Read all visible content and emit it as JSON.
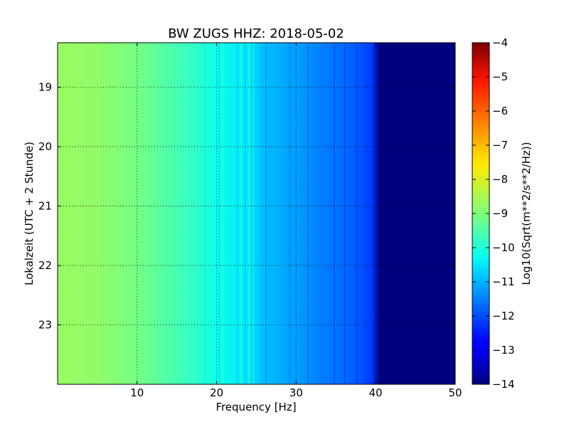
{
  "chart_data": {
    "type": "heatmap",
    "title": "BW ZUGS HHZ: 2018-05-02",
    "xlabel": "Frequency [Hz]",
    "ylabel": "Lokalzeit (UTC + 2 Stunde)",
    "colorbar_label": "Log10(Sqrt(m**2/s**2/Hz))",
    "xlim": [
      0,
      50
    ],
    "ylim": [
      18.25,
      24.0
    ],
    "y_inverted": true,
    "x_ticks": [
      10,
      20,
      30,
      40,
      50
    ],
    "x_tick_labels": [
      "10",
      "20",
      "30",
      "40",
      "50"
    ],
    "y_ticks": [
      19,
      20,
      21,
      22,
      23
    ],
    "y_tick_labels": [
      "19",
      "20",
      "21",
      "22",
      "23"
    ],
    "colorbar_range": [
      -14,
      -4
    ],
    "colorbar_ticks": [
      -4,
      -5,
      -6,
      -7,
      -8,
      -9,
      -10,
      -11,
      -12,
      -13,
      -14
    ],
    "colorbar_tick_labels": [
      "−4",
      "−5",
      "−6",
      "−7",
      "−8",
      "−9",
      "−10",
      "−11",
      "−12",
      "−13",
      "−14"
    ],
    "colormap": "jet",
    "grid": true,
    "frequency_profile": {
      "frequency_hz": [
        0,
        5,
        10,
        14,
        18,
        20,
        24,
        26,
        30,
        33,
        36,
        38,
        39.5,
        40.5,
        50
      ],
      "log_amplitude": [
        -8.7,
        -8.8,
        -9.1,
        -9.5,
        -9.9,
        -10.2,
        -10.5,
        -10.9,
        -11.2,
        -11.5,
        -11.7,
        -11.9,
        -12.2,
        -14.0,
        -14.0
      ]
    },
    "line_features_hz": [
      18.5,
      20.3,
      22.6,
      23.6,
      24.5,
      26.2,
      29.2,
      31.5,
      34.8,
      36.1,
      37.6
    ],
    "bright_features_hz": [
      20.8,
      23.1,
      24.1,
      24.6
    ]
  }
}
